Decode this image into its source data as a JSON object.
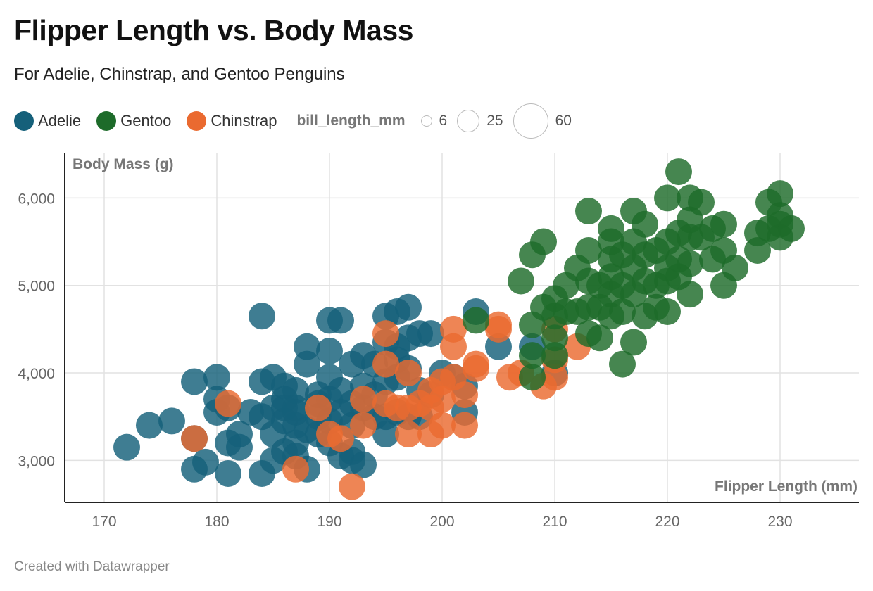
{
  "header": {
    "title": "Flipper Length vs. Body Mass",
    "subtitle": "For Adelie, Chinstrap, and Gentoo Penguins"
  },
  "legend": {
    "items": [
      {
        "label": "Adelie",
        "color": "#15607a"
      },
      {
        "label": "Gentoo",
        "color": "#1d6b2a"
      },
      {
        "label": "Chinstrap",
        "color": "#ea6a30"
      }
    ],
    "size_title": "bill_length_mm",
    "size_items": [
      {
        "label": "6",
        "value": 6
      },
      {
        "label": "25",
        "value": 25
      },
      {
        "label": "60",
        "value": 60
      }
    ]
  },
  "footer": {
    "credit": "Created with Datawrapper"
  },
  "chart_data": {
    "type": "scatter",
    "xlabel": "Flipper Length (mm)",
    "ylabel": "Body Mass (g)",
    "xlim": [
      166.5,
      237
    ],
    "ylim": [
      2520,
      6510
    ],
    "xticks": [
      170,
      180,
      190,
      200,
      210,
      220,
      230
    ],
    "yticks": [
      3000,
      4000,
      5000,
      6000
    ],
    "ytick_labels": [
      "3,000",
      "4,000",
      "5,000",
      "6,000"
    ],
    "grid": true,
    "legend_position": "top",
    "size_field": "bill_length_mm",
    "series": [
      {
        "name": "Adelie",
        "color": "#15607a",
        "points": [
          [
            172,
            3150
          ],
          [
            174,
            3400
          ],
          [
            176,
            3450
          ],
          [
            178,
            3900
          ],
          [
            178,
            2900
          ],
          [
            178,
            3250
          ],
          [
            179,
            2980
          ],
          [
            180,
            3950
          ],
          [
            180,
            3550
          ],
          [
            180,
            3700
          ],
          [
            181,
            2850
          ],
          [
            181,
            3200
          ],
          [
            181,
            3600
          ],
          [
            182,
            3300
          ],
          [
            182,
            3150
          ],
          [
            183,
            3550
          ],
          [
            184,
            4650
          ],
          [
            184,
            3900
          ],
          [
            184,
            3500
          ],
          [
            184,
            2850
          ],
          [
            185,
            3950
          ],
          [
            185,
            3600
          ],
          [
            185,
            3300
          ],
          [
            185,
            3000
          ],
          [
            186,
            3850
          ],
          [
            186,
            3600
          ],
          [
            186,
            3450
          ],
          [
            186,
            3100
          ],
          [
            186,
            3700
          ],
          [
            187,
            3800
          ],
          [
            187,
            3550
          ],
          [
            187,
            3400
          ],
          [
            187,
            3200
          ],
          [
            187,
            3050
          ],
          [
            187,
            3600
          ],
          [
            188,
            4300
          ],
          [
            188,
            4100
          ],
          [
            188,
            2900
          ],
          [
            188,
            3350
          ],
          [
            189,
            3750
          ],
          [
            189,
            3500
          ],
          [
            189,
            3300
          ],
          [
            189,
            3650
          ],
          [
            190,
            4600
          ],
          [
            190,
            4250
          ],
          [
            190,
            3950
          ],
          [
            190,
            3700
          ],
          [
            190,
            3450
          ],
          [
            190,
            3200
          ],
          [
            191,
            4600
          ],
          [
            191,
            3800
          ],
          [
            191,
            3550
          ],
          [
            191,
            3050
          ],
          [
            192,
            4100
          ],
          [
            192,
            3650
          ],
          [
            192,
            3400
          ],
          [
            192,
            3100
          ],
          [
            192,
            3000
          ],
          [
            193,
            4200
          ],
          [
            193,
            3850
          ],
          [
            193,
            2950
          ],
          [
            193,
            3600
          ],
          [
            194,
            3750
          ],
          [
            194,
            3500
          ],
          [
            194,
            4100
          ],
          [
            195,
            4650
          ],
          [
            195,
            4350
          ],
          [
            195,
            3900
          ],
          [
            195,
            3500
          ],
          [
            195,
            3300
          ],
          [
            196,
            4700
          ],
          [
            196,
            4300
          ],
          [
            196,
            3950
          ],
          [
            196,
            3550
          ],
          [
            196,
            4150
          ],
          [
            197,
            4750
          ],
          [
            197,
            4400
          ],
          [
            197,
            4050
          ],
          [
            197,
            3500
          ],
          [
            198,
            4450
          ],
          [
            198,
            3800
          ],
          [
            198,
            3500
          ],
          [
            199,
            4450
          ],
          [
            199,
            3750
          ],
          [
            200,
            4000
          ],
          [
            201,
            3950
          ],
          [
            202,
            3850
          ],
          [
            202,
            3550
          ],
          [
            203,
            4700
          ],
          [
            205,
            4300
          ],
          [
            208,
            4300
          ],
          [
            210,
            4000
          ]
        ]
      },
      {
        "name": "Chinstrap",
        "color": "#ea6a30",
        "points": [
          [
            178,
            3250
          ],
          [
            181,
            3650
          ],
          [
            187,
            2900
          ],
          [
            189,
            3600
          ],
          [
            190,
            3300
          ],
          [
            191,
            3250
          ],
          [
            192,
            2700
          ],
          [
            193,
            3700
          ],
          [
            193,
            3400
          ],
          [
            195,
            3650
          ],
          [
            195,
            4100
          ],
          [
            195,
            4450
          ],
          [
            196,
            3600
          ],
          [
            197,
            3300
          ],
          [
            197,
            3600
          ],
          [
            197,
            4000
          ],
          [
            198,
            3650
          ],
          [
            199,
            3300
          ],
          [
            199,
            3600
          ],
          [
            199,
            3800
          ],
          [
            200,
            3900
          ],
          [
            200,
            3700
          ],
          [
            200,
            3400
          ],
          [
            201,
            4300
          ],
          [
            201,
            4500
          ],
          [
            201,
            3950
          ],
          [
            202,
            3400
          ],
          [
            202,
            3750
          ],
          [
            203,
            4050
          ],
          [
            203,
            4100
          ],
          [
            205,
            4550
          ],
          [
            205,
            4500
          ],
          [
            206,
            3950
          ],
          [
            207,
            4000
          ],
          [
            209,
            3850
          ],
          [
            210,
            3950
          ],
          [
            210,
            4150
          ],
          [
            210,
            4500
          ],
          [
            212,
            4300
          ]
        ]
      },
      {
        "name": "Gentoo",
        "color": "#1d6b2a",
        "points": [
          [
            203,
            4600
          ],
          [
            207,
            5050
          ],
          [
            208,
            5350
          ],
          [
            208,
            4550
          ],
          [
            208,
            3950
          ],
          [
            208,
            4200
          ],
          [
            209,
            5500
          ],
          [
            209,
            4750
          ],
          [
            210,
            4850
          ],
          [
            210,
            4650
          ],
          [
            210,
            4400
          ],
          [
            210,
            4200
          ],
          [
            211,
            4700
          ],
          [
            211,
            5000
          ],
          [
            212,
            5200
          ],
          [
            212,
            4700
          ],
          [
            213,
            5850
          ],
          [
            213,
            5400
          ],
          [
            213,
            5050
          ],
          [
            213,
            4750
          ],
          [
            213,
            4450
          ],
          [
            214,
            5000
          ],
          [
            214,
            4750
          ],
          [
            214,
            4400
          ],
          [
            215,
            5650
          ],
          [
            215,
            5500
          ],
          [
            215,
            5300
          ],
          [
            215,
            5100
          ],
          [
            215,
            4900
          ],
          [
            215,
            4650
          ],
          [
            216,
            5350
          ],
          [
            216,
            5000
          ],
          [
            216,
            4700
          ],
          [
            216,
            4100
          ],
          [
            217,
            5850
          ],
          [
            217,
            5500
          ],
          [
            217,
            5200
          ],
          [
            217,
            4900
          ],
          [
            217,
            4350
          ],
          [
            218,
            5700
          ],
          [
            218,
            5350
          ],
          [
            218,
            5050
          ],
          [
            218,
            4650
          ],
          [
            219,
            5400
          ],
          [
            219,
            5000
          ],
          [
            219,
            4750
          ],
          [
            220,
            6000
          ],
          [
            220,
            5500
          ],
          [
            220,
            5200
          ],
          [
            220,
            5050
          ],
          [
            220,
            4700
          ],
          [
            221,
            6300
          ],
          [
            221,
            5600
          ],
          [
            221,
            5300
          ],
          [
            221,
            5100
          ],
          [
            222,
            6000
          ],
          [
            222,
            5750
          ],
          [
            222,
            5550
          ],
          [
            222,
            5250
          ],
          [
            222,
            4900
          ],
          [
            223,
            5950
          ],
          [
            223,
            5550
          ],
          [
            224,
            5650
          ],
          [
            224,
            5300
          ],
          [
            225,
            5700
          ],
          [
            225,
            5400
          ],
          [
            225,
            5000
          ],
          [
            226,
            5200
          ],
          [
            228,
            5400
          ],
          [
            228,
            5600
          ],
          [
            229,
            5950
          ],
          [
            229,
            5650
          ],
          [
            230,
            6050
          ],
          [
            230,
            5800
          ],
          [
            230,
            5550
          ],
          [
            230,
            5700
          ],
          [
            231,
            5650
          ]
        ]
      }
    ]
  }
}
